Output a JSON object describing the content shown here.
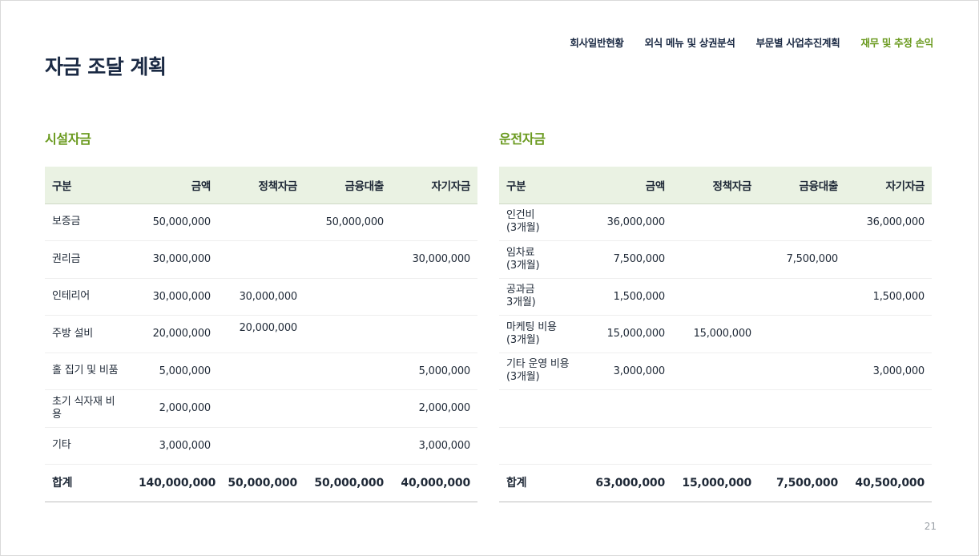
{
  "page": {
    "title": "자금 조달 계획",
    "page_number": "21"
  },
  "nav": {
    "items": [
      {
        "label": "회사일반현황",
        "active": false
      },
      {
        "label": "외식 메뉴 및 상권분석",
        "active": false
      },
      {
        "label": "부문별 사업추진계획",
        "active": false
      },
      {
        "label": "재무 및 추정 손익",
        "active": true
      }
    ],
    "active_color": "#6a9a1f"
  },
  "facility": {
    "title": "시설자금",
    "headers": [
      "구분",
      "금액",
      "정책자금",
      "금융대출",
      "자기자금"
    ],
    "rows": [
      [
        "보증금",
        "50,000,000",
        "",
        "50,000,000",
        ""
      ],
      [
        "권리금",
        "30,000,000",
        "",
        "",
        "30,000,000"
      ],
      [
        "인테리어",
        "30,000,000",
        "30,000,000",
        "",
        ""
      ],
      [
        "주방 설비",
        "20,000,000",
        "20,000,000",
        "",
        ""
      ],
      [
        "홀 집기 및 비품",
        "5,000,000",
        "",
        "",
        "5,000,000"
      ],
      [
        "초기 식자재 비용",
        "2,000,000",
        "",
        "",
        "2,000,000"
      ],
      [
        "기타",
        "3,000,000",
        "",
        "",
        "3,000,000"
      ]
    ],
    "total": [
      "합계",
      "140,000,000",
      "50,000,000",
      "50,000,000",
      "40,000,000"
    ]
  },
  "operating": {
    "title": "운전자금",
    "headers": [
      "구분",
      "금액",
      "정책자금",
      "금융대출",
      "자기자금"
    ],
    "rows": [
      [
        "인건비\n(3개월)",
        "36,000,000",
        "",
        "",
        "36,000,000"
      ],
      [
        "임차료\n(3개월)",
        "7,500,000",
        "",
        "7,500,000",
        ""
      ],
      [
        "공과금\n3개월)",
        "1,500,000",
        "",
        "",
        "1,500,000"
      ],
      [
        "마케팅 비용\n(3개월)",
        "15,000,000",
        "15,000,000",
        "",
        ""
      ],
      [
        "기타 운영 비용\n(3개월)",
        "3,000,000",
        "",
        "",
        "3,000,000"
      ],
      [
        "",
        "",
        "",
        "",
        ""
      ],
      [
        "",
        "",
        "",
        "",
        ""
      ]
    ],
    "total": [
      "합계",
      "63,000,000",
      "15,000,000",
      "7,500,000",
      "40,500,000"
    ]
  },
  "colors": {
    "accent": "#6a9a1f",
    "header_bg": "#eaf2e3",
    "title": "#1b2a44"
  }
}
